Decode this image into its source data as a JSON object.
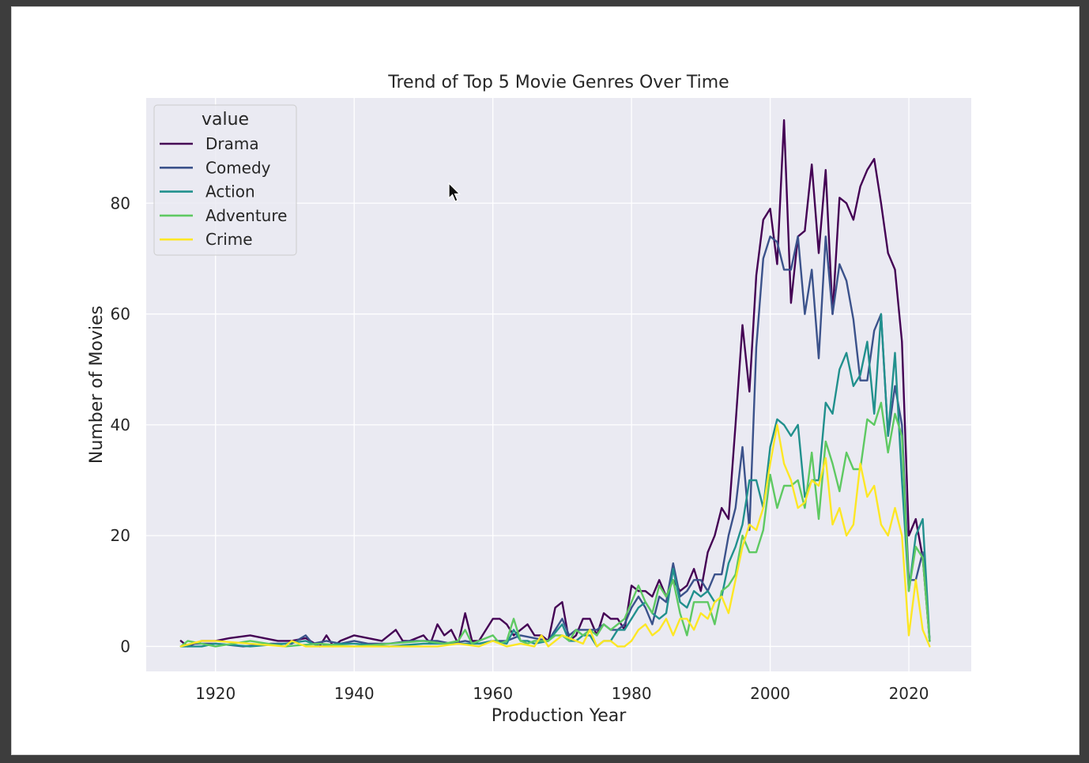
{
  "chart_data": {
    "type": "line",
    "title": "Trend of Top 5 Movie Genres Over Time",
    "xlabel": "Production Year",
    "ylabel": "Number of Movies",
    "xlim": [
      1910,
      2029
    ],
    "ylim": [
      -4.5,
      99
    ],
    "xticks": [
      1920,
      1940,
      1960,
      1980,
      2000,
      2020
    ],
    "yticks": [
      0,
      20,
      40,
      60,
      80
    ],
    "grid": true,
    "legend": {
      "title": "value",
      "placement": "top-left"
    },
    "series": [
      {
        "name": "Drama",
        "color": "#440154",
        "x": [
          1915,
          1916,
          1918,
          1920,
          1922,
          1925,
          1927,
          1929,
          1931,
          1933,
          1935,
          1936,
          1937,
          1938,
          1940,
          1942,
          1944,
          1946,
          1947,
          1948,
          1950,
          1951,
          1952,
          1953,
          1954,
          1955,
          1956,
          1957,
          1958,
          1960,
          1961,
          1962,
          1963,
          1964,
          1965,
          1966,
          1967,
          1968,
          1969,
          1970,
          1971,
          1972,
          1973,
          1974,
          1975,
          1976,
          1977,
          1978,
          1979,
          1980,
          1981,
          1982,
          1983,
          1984,
          1985,
          1986,
          1987,
          1988,
          1989,
          1990,
          1991,
          1992,
          1993,
          1994,
          1995,
          1996,
          1997,
          1998,
          1999,
          2000,
          2001,
          2002,
          2003,
          2004,
          2005,
          2006,
          2007,
          2008,
          2009,
          2010,
          2011,
          2012,
          2013,
          2014,
          2015,
          2016,
          2017,
          2018,
          2019,
          2020,
          2021,
          2022,
          2023
        ],
        "y": [
          1,
          0,
          1,
          1,
          1.5,
          2,
          1.5,
          1,
          1,
          1.5,
          0,
          2,
          0,
          1,
          2,
          1.5,
          1,
          3,
          1,
          1,
          2,
          0.5,
          4,
          2,
          3,
          0.5,
          6,
          1,
          1,
          5,
          5,
          4,
          2,
          3,
          4,
          2,
          2,
          1,
          7,
          8,
          1,
          2,
          5,
          5,
          2,
          6,
          5,
          5,
          3,
          11,
          10,
          10,
          9,
          12,
          9,
          12,
          10,
          11,
          14,
          10,
          17,
          20,
          25,
          23,
          40,
          58,
          46,
          67,
          77,
          79,
          69,
          95,
          62,
          74,
          75,
          87,
          71,
          86,
          60,
          81,
          80,
          77,
          83,
          86,
          88,
          80,
          71,
          68,
          55,
          20,
          23,
          16,
          1
        ]
      },
      {
        "name": "Comedy",
        "color": "#3b528b",
        "x": [
          1915,
          1917,
          1920,
          1924,
          1928,
          1931,
          1933,
          1934,
          1936,
          1938,
          1940,
          1942,
          1945,
          1948,
          1950,
          1952,
          1954,
          1956,
          1958,
          1960,
          1962,
          1964,
          1966,
          1968,
          1969,
          1970,
          1971,
          1972,
          1973,
          1974,
          1975,
          1976,
          1977,
          1978,
          1979,
          1980,
          1981,
          1982,
          1983,
          1984,
          1985,
          1986,
          1987,
          1988,
          1989,
          1990,
          1991,
          1992,
          1993,
          1994,
          1995,
          1996,
          1997,
          1998,
          1999,
          2000,
          2001,
          2002,
          2003,
          2004,
          2005,
          2006,
          2007,
          2008,
          2009,
          2010,
          2011,
          2012,
          2013,
          2014,
          2015,
          2016,
          2017,
          2018,
          2019,
          2020,
          2021,
          2022,
          2023
        ],
        "y": [
          0,
          0.5,
          0.5,
          0,
          0.5,
          0.5,
          2,
          0.5,
          1,
          0.5,
          1,
          0.5,
          0.5,
          1,
          1,
          1,
          0.5,
          1,
          0.5,
          1,
          1,
          2,
          1.5,
          1,
          3,
          5,
          2,
          3,
          3,
          3,
          3,
          4,
          3,
          3,
          4,
          7,
          9,
          7,
          4,
          9,
          8,
          15,
          9,
          10,
          12,
          12,
          10,
          13,
          13,
          20,
          25,
          36,
          21,
          54,
          70,
          74,
          73,
          68,
          68,
          74,
          60,
          68,
          52,
          74,
          60,
          69,
          66,
          59,
          48,
          48,
          57,
          60,
          38,
          47,
          40,
          12,
          12,
          17,
          1
        ]
      },
      {
        "name": "Action",
        "color": "#21908d",
        "x": [
          1915,
          1918,
          1920,
          1925,
          1930,
          1933,
          1935,
          1938,
          1940,
          1945,
          1950,
          1955,
          1958,
          1960,
          1962,
          1963,
          1964,
          1965,
          1966,
          1968,
          1970,
          1971,
          1972,
          1973,
          1974,
          1975,
          1976,
          1977,
          1978,
          1979,
          1980,
          1981,
          1982,
          1983,
          1984,
          1985,
          1986,
          1987,
          1988,
          1989,
          1990,
          1991,
          1992,
          1993,
          1994,
          1995,
          1996,
          1997,
          1998,
          1999,
          2000,
          2001,
          2002,
          2003,
          2004,
          2005,
          2006,
          2007,
          2008,
          2009,
          2010,
          2011,
          2012,
          2013,
          2014,
          2015,
          2016,
          2017,
          2018,
          2019,
          2020,
          2021,
          2022,
          2023
        ],
        "y": [
          0,
          0,
          0.5,
          0,
          0.5,
          1,
          0,
          0.5,
          0.5,
          0,
          0.5,
          0.5,
          0.5,
          1,
          0.5,
          3,
          1,
          1,
          0.5,
          1,
          4,
          1,
          1,
          2,
          2,
          0,
          1,
          1,
          3,
          3,
          5,
          7,
          8,
          6,
          5,
          6,
          14,
          8,
          7,
          10,
          9,
          10,
          8,
          9,
          15,
          18,
          22,
          30,
          30,
          25,
          36,
          41,
          40,
          38,
          40,
          27,
          30,
          30,
          44,
          42,
          50,
          53,
          47,
          49,
          55,
          42,
          60,
          38,
          53,
          30,
          10,
          20,
          23,
          1
        ]
      },
      {
        "name": "Adventure",
        "color": "#5ec962",
        "x": [
          1915,
          1916,
          1918,
          1920,
          1925,
          1930,
          1935,
          1940,
          1945,
          1950,
          1953,
          1955,
          1956,
          1957,
          1958,
          1960,
          1961,
          1962,
          1963,
          1964,
          1965,
          1966,
          1968,
          1969,
          1970,
          1971,
          1972,
          1973,
          1974,
          1975,
          1976,
          1977,
          1978,
          1979,
          1980,
          1981,
          1982,
          1983,
          1984,
          1985,
          1986,
          1987,
          1988,
          1989,
          1990,
          1991,
          1992,
          1993,
          1994,
          1995,
          1996,
          1997,
          1998,
          1999,
          2000,
          2001,
          2002,
          2003,
          2004,
          2005,
          2006,
          2007,
          2008,
          2009,
          2010,
          2011,
          2012,
          2013,
          2014,
          2015,
          2016,
          2017,
          2018,
          2019,
          2020,
          2021,
          2022,
          2023
        ],
        "y": [
          0,
          1,
          0.5,
          0,
          1,
          0,
          0.5,
          0,
          0.5,
          1,
          0.5,
          1,
          3,
          0.5,
          1,
          2,
          0.5,
          1,
          5,
          1,
          0.5,
          1,
          1,
          2,
          2,
          1,
          3,
          2,
          3,
          2,
          4,
          3,
          4,
          5,
          8,
          11,
          8,
          6,
          11,
          9,
          12,
          6,
          2,
          8,
          8,
          8,
          4,
          10,
          11,
          13,
          20,
          17,
          17,
          21,
          31,
          25,
          29,
          29,
          30,
          25,
          35,
          23,
          37,
          33,
          28,
          35,
          32,
          32,
          41,
          40,
          44,
          35,
          42,
          38,
          10,
          18,
          16,
          1
        ]
      },
      {
        "name": "Crime",
        "color": "#fde725",
        "x": [
          1915,
          1918,
          1920,
          1925,
          1930,
          1931,
          1933,
          1935,
          1940,
          1945,
          1950,
          1952,
          1955,
          1958,
          1960,
          1962,
          1964,
          1966,
          1967,
          1968,
          1969,
          1970,
          1972,
          1973,
          1974,
          1975,
          1976,
          1977,
          1978,
          1979,
          1980,
          1981,
          1982,
          1983,
          1984,
          1985,
          1986,
          1987,
          1988,
          1989,
          1990,
          1991,
          1992,
          1993,
          1994,
          1995,
          1996,
          1997,
          1998,
          1999,
          2000,
          2001,
          2002,
          2003,
          2004,
          2005,
          2006,
          2007,
          2008,
          2009,
          2010,
          2011,
          2012,
          2013,
          2014,
          2015,
          2016,
          2017,
          2018,
          2019,
          2020,
          2021,
          2022,
          2023
        ],
        "y": [
          0,
          1,
          1,
          0.5,
          0,
          1,
          0,
          0,
          0,
          0,
          0,
          0,
          0.5,
          0,
          1,
          0,
          0.5,
          0,
          2,
          0,
          1,
          2,
          1,
          0.5,
          3,
          0,
          1,
          1,
          0,
          0,
          1,
          3,
          4,
          2,
          3,
          5,
          2,
          5,
          5,
          3,
          6,
          5,
          8,
          9,
          6,
          12,
          18,
          22,
          21,
          25,
          33,
          40,
          33,
          30,
          25,
          26,
          30,
          29,
          34,
          22,
          25,
          20,
          22,
          33,
          27,
          29,
          22,
          20,
          25,
          20,
          2,
          12,
          3,
          0
        ]
      }
    ]
  }
}
